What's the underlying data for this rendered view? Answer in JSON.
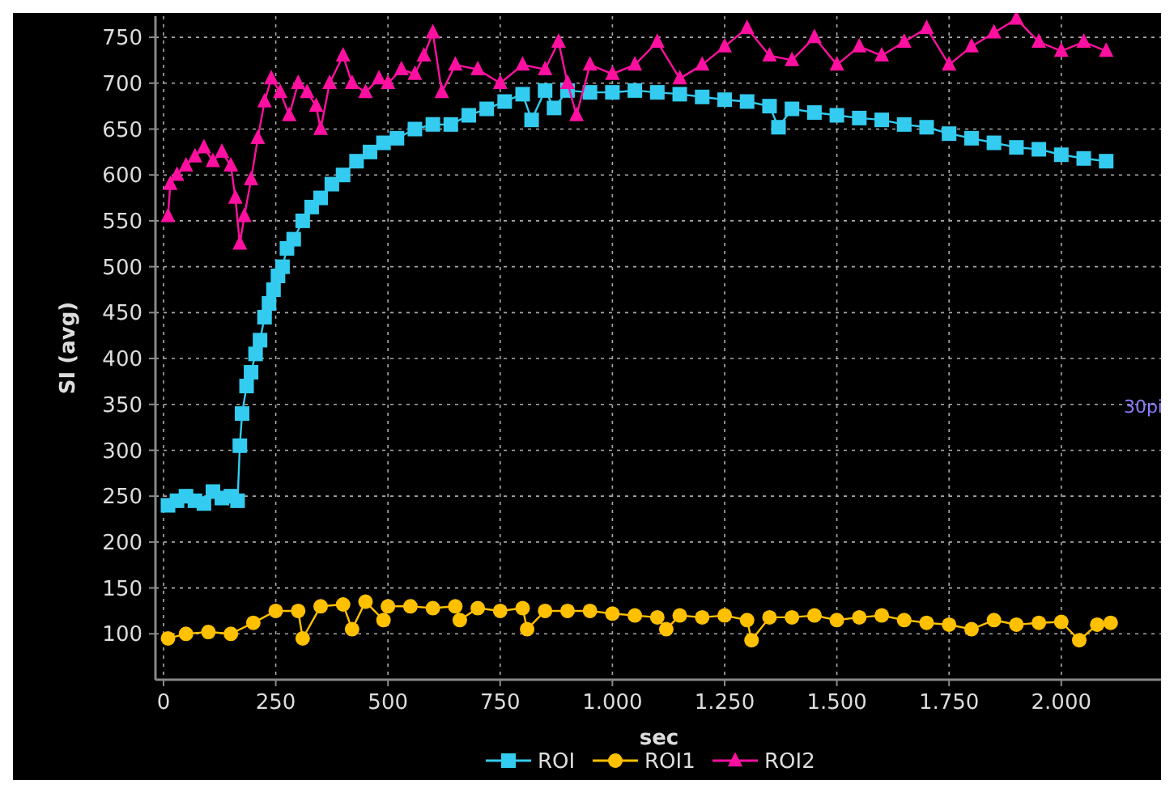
{
  "chart_data": {
    "type": "line",
    "xlabel": "sec",
    "ylabel": "SI (avg)",
    "xlim": [
      -18,
      2215
    ],
    "ylim": [
      50,
      773
    ],
    "xticks": [
      0,
      250,
      500,
      750,
      {
        "value": 1000,
        "label": "1.000"
      },
      {
        "value": 1250,
        "label": "1.250"
      },
      {
        "value": 1500,
        "label": "1.500"
      },
      {
        "value": 1750,
        "label": "1.750"
      },
      {
        "value": 2000,
        "label": "2.000"
      }
    ],
    "yticks": [
      100,
      150,
      200,
      250,
      300,
      350,
      400,
      450,
      500,
      550,
      600,
      650,
      700,
      750
    ],
    "grid": true,
    "legend": "bottom",
    "annotations": [
      "30pi"
    ],
    "series": [
      {
        "name": "ROI",
        "color": "#33ccf0",
        "marker": "square",
        "x": [
          10,
          30,
          50,
          70,
          90,
          110,
          130,
          150,
          165,
          170,
          175,
          185,
          195,
          205,
          215,
          225,
          235,
          245,
          255,
          265,
          275,
          290,
          310,
          330,
          350,
          375,
          400,
          430,
          460,
          490,
          520,
          560,
          600,
          640,
          680,
          720,
          760,
          800,
          820,
          850,
          870,
          900,
          950,
          1000,
          1050,
          1100,
          1150,
          1200,
          1250,
          1300,
          1350,
          1370,
          1400,
          1450,
          1500,
          1550,
          1600,
          1650,
          1700,
          1750,
          1800,
          1850,
          1900,
          1950,
          2000,
          2050,
          2100
        ],
        "values": [
          240,
          245,
          250,
          245,
          242,
          255,
          248,
          250,
          245,
          305,
          340,
          370,
          385,
          405,
          420,
          445,
          460,
          475,
          490,
          500,
          520,
          530,
          550,
          565,
          575,
          590,
          600,
          615,
          625,
          635,
          640,
          650,
          655,
          655,
          665,
          672,
          680,
          688,
          660,
          692,
          673,
          692,
          690,
          690,
          692,
          690,
          688,
          685,
          682,
          680,
          675,
          652,
          672,
          668,
          665,
          662,
          660,
          655,
          652,
          645,
          640,
          635,
          630,
          628,
          622,
          618,
          615
        ]
      },
      {
        "name": "ROI1",
        "color": "#ffc000",
        "marker": "circle",
        "x": [
          10,
          50,
          100,
          150,
          200,
          250,
          300,
          310,
          350,
          400,
          420,
          450,
          490,
          500,
          550,
          600,
          650,
          660,
          700,
          750,
          800,
          810,
          850,
          900,
          950,
          1000,
          1050,
          1100,
          1120,
          1150,
          1200,
          1250,
          1300,
          1310,
          1350,
          1400,
          1450,
          1500,
          1550,
          1600,
          1650,
          1700,
          1750,
          1800,
          1850,
          1900,
          1950,
          2000,
          2040,
          2080,
          2110
        ],
        "values": [
          95,
          100,
          102,
          100,
          112,
          125,
          125,
          95,
          130,
          132,
          105,
          135,
          115,
          130,
          130,
          128,
          130,
          115,
          128,
          125,
          128,
          105,
          125,
          125,
          125,
          122,
          120,
          118,
          105,
          120,
          118,
          120,
          115,
          93,
          118,
          118,
          120,
          115,
          118,
          120,
          115,
          112,
          110,
          105,
          115,
          110,
          112,
          113,
          93,
          110,
          112
        ]
      },
      {
        "name": "ROI2",
        "color": "#ff10a0",
        "marker": "triangle",
        "x": [
          10,
          15,
          30,
          50,
          70,
          90,
          110,
          130,
          150,
          160,
          170,
          180,
          195,
          210,
          225,
          240,
          260,
          280,
          300,
          320,
          340,
          350,
          370,
          400,
          420,
          450,
          480,
          500,
          530,
          560,
          580,
          600,
          620,
          650,
          700,
          750,
          800,
          850,
          880,
          900,
          920,
          950,
          1000,
          1050,
          1100,
          1150,
          1200,
          1250,
          1300,
          1350,
          1400,
          1450,
          1500,
          1550,
          1600,
          1650,
          1700,
          1750,
          1800,
          1850,
          1900,
          1950,
          2000,
          2050,
          2100
        ],
        "values": [
          555,
          590,
          600,
          610,
          620,
          630,
          615,
          625,
          610,
          575,
          525,
          555,
          595,
          640,
          680,
          705,
          690,
          665,
          700,
          690,
          675,
          650,
          700,
          730,
          700,
          690,
          705,
          700,
          715,
          710,
          730,
          755,
          690,
          720,
          715,
          700,
          720,
          715,
          745,
          700,
          665,
          720,
          710,
          720,
          745,
          705,
          720,
          740,
          760,
          730,
          725,
          750,
          720,
          740,
          730,
          745,
          760,
          720,
          740,
          755,
          770,
          745,
          735,
          745,
          735
        ]
      }
    ]
  }
}
